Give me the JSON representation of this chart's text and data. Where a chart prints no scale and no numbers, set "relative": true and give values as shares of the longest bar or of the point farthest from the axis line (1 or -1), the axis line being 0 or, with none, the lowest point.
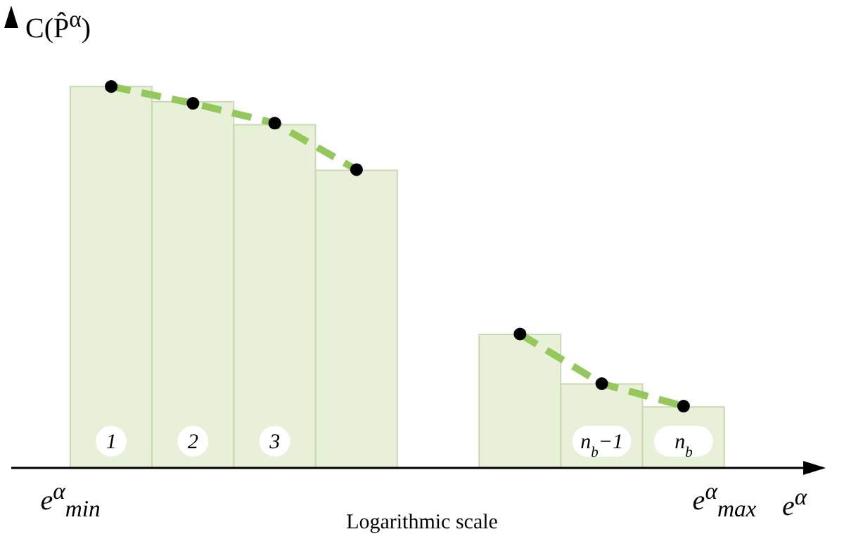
{
  "chart_data": {
    "type": "bar",
    "relative": true,
    "ylabel": "C(P̂$^{α}$)",
    "xlabel": "e$^{α}$",
    "annotations": [
      "Logarithmic scale",
      "e$^{α}$$_{min}$",
      "e$^{α}$$_{max}$"
    ],
    "categories": [
      "1",
      "2",
      "3",
      null,
      null,
      null,
      "n$_{b}$−1",
      "n$_{b}$"
    ],
    "series": [
      {
        "color": "#e8f0d8",
        "values": [
          1,
          0.96,
          0.9,
          0.78,
          null,
          0.35,
          0.22,
          0.16
        ]
      },
      {
        "type": "line",
        "color": "#95c85c",
        "line_style": "dashed",
        "marker": "none",
        "values": [
          1,
          0.956,
          0.904,
          0.782,
          null,
          0.351,
          0.221,
          0.162
        ]
      },
      {
        "type": "scatter",
        "color": "#000000",
        "marker": "circle",
        "values": [
          1,
          0.956,
          0.904,
          0.782,
          null,
          0.351,
          0.221,
          0.162
        ]
      }
    ],
    "grid": false
  }
}
